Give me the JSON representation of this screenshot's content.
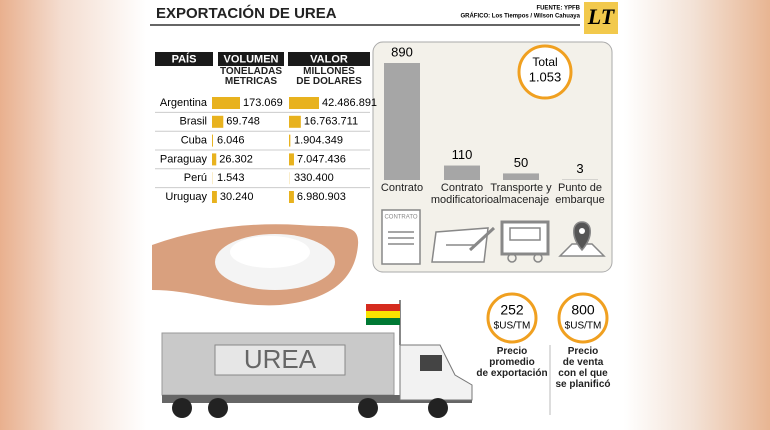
{
  "header": {
    "title": "EXPORTACIÓN DE UREA",
    "source": "FUENTE: YPFB",
    "credit": "GRÁFICO: Los Tiempos / Wilson Cahuaya",
    "logo": "LT"
  },
  "table": {
    "columns": [
      "PAÍS",
      "VOLUMEN",
      "VALOR"
    ],
    "units": [
      "TONELADAS\nMETRICAS",
      "MILLONES\nDE DOLARES"
    ],
    "bar_color": "#e8b21e",
    "rows": [
      {
        "country": "Argentina",
        "volume": {
          "value": 173069,
          "label": "173.069"
        },
        "value": {
          "value": 42486891,
          "label": "42.486.891"
        }
      },
      {
        "country": "Brasil",
        "volume": {
          "value": 69748,
          "label": "69.748"
        },
        "value": {
          "value": 16763711,
          "label": "16.763.711"
        }
      },
      {
        "country": "Cuba",
        "volume": {
          "value": 6046,
          "label": "6.046"
        },
        "value": {
          "value": 1904349,
          "label": "1.904.349"
        }
      },
      {
        "country": "Paraguay",
        "volume": {
          "value": 26302,
          "label": "26.302"
        },
        "value": {
          "value": 7047436,
          "label": "7.047.436"
        }
      },
      {
        "country": "Perú",
        "volume": {
          "value": 1543,
          "label": "1.543"
        },
        "value": {
          "value": 330400,
          "label": "330.400"
        }
      },
      {
        "country": "Uruguay",
        "volume": {
          "value": 30240,
          "label": "30.240"
        },
        "value": {
          "value": 6980903,
          "label": "6.980.903"
        }
      }
    ]
  },
  "costs": {
    "type": "bar",
    "categories": [
      "Contrato",
      "Contrato\nmodificatorio",
      "Transporte y\nalmacenaje",
      "Punto de\nembarque"
    ],
    "values": [
      890,
      110,
      50,
      3
    ],
    "color": "#a6a6a6",
    "total_label": "Total",
    "total": "1.053"
  },
  "prices": [
    {
      "value": 252,
      "unit": "$US/TM",
      "label": "Precio\npromedio\nde exportación"
    },
    {
      "value": 800,
      "unit": "$US/TM",
      "label": "Precio\nde venta\ncon el que\nse planificó"
    }
  ],
  "truck": {
    "label": "UREA"
  }
}
